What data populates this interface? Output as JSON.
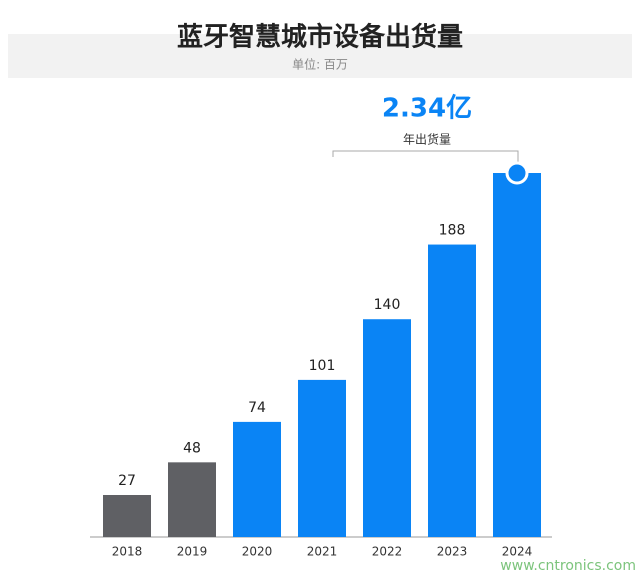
{
  "chart_data": {
    "type": "bar",
    "title": "蓝牙智慧城市设备出货量",
    "subtitle": "单位: 百万",
    "categories": [
      "2018",
      "2019",
      "2020",
      "2021",
      "2022",
      "2023",
      "2024"
    ],
    "values": [
      27,
      48,
      74,
      101,
      140,
      188,
      234
    ],
    "value_labels": [
      "27",
      "48",
      "74",
      "101",
      "140",
      "188",
      null
    ],
    "colors": [
      "#5f6064",
      "#5f6064",
      "#0a84f5",
      "#0a84f5",
      "#0a84f5",
      "#0a84f5",
      "#0a84f5"
    ],
    "annotation": {
      "text": "2.34亿",
      "label": "年出货量"
    },
    "watermark": "www.cntronics.com"
  }
}
